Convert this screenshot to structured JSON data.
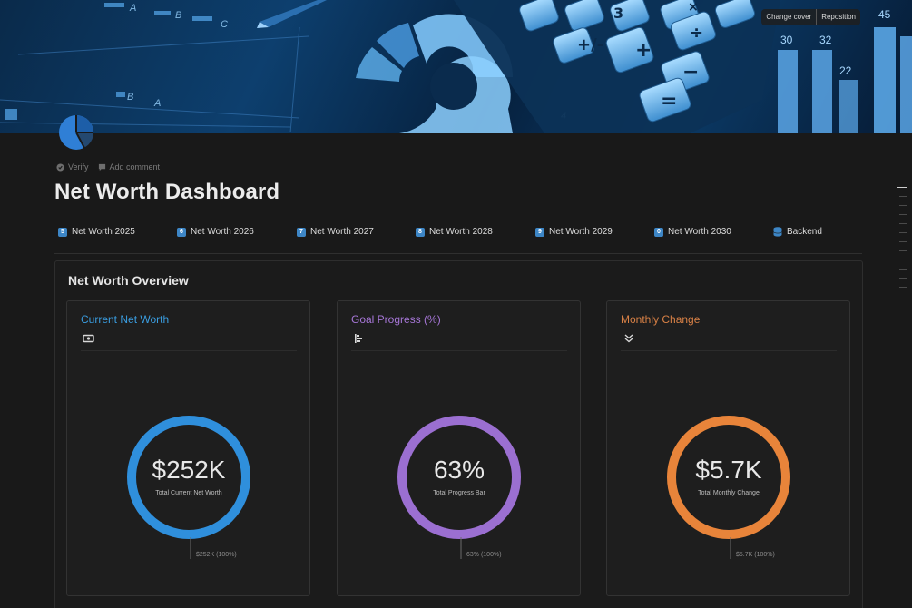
{
  "cover": {
    "change_cover_label": "Change cover",
    "reposition_label": "Reposition"
  },
  "page": {
    "icon": "pie-chart-icon",
    "title": "Net Worth Dashboard",
    "verify_label": "Verify",
    "add_comment_label": "Add comment"
  },
  "links": [
    {
      "badge": "5",
      "label": "Net Worth 2025"
    },
    {
      "badge": "6",
      "label": "Net Worth 2026"
    },
    {
      "badge": "7",
      "label": "Net Worth 2027"
    },
    {
      "badge": "8",
      "label": "Net Worth 2028"
    },
    {
      "badge": "9",
      "label": "Net Worth 2029"
    },
    {
      "badge": "0",
      "label": "Net Worth 2030"
    },
    {
      "badge": "",
      "label": "Backend",
      "icon": "database-icon"
    }
  ],
  "overview": {
    "title": "Net Worth Overview",
    "cards": [
      {
        "title": "Current Net Worth",
        "icon": "banknote-icon",
        "value": "$252K",
        "subtitle": "Total Current Net Worth",
        "leader_label": "$252K (100%)",
        "fraction": 1.0,
        "color": "#2f8fdc",
        "title_color": "#3a9de0"
      },
      {
        "title": "Goal Progress (%)",
        "icon": "bar-chart-icon",
        "value": "63%",
        "subtitle": "Total Progress Bar",
        "leader_label": "63% (100%)",
        "fraction": 1.0,
        "color": "#9b6fd1",
        "title_color": "#a777d8"
      },
      {
        "title": "Monthly Change",
        "icon": "double-chevron-down-icon",
        "value": "$5.7K",
        "subtitle": "Total Monthly Change",
        "leader_label": "$5.7K (100%)",
        "fraction": 1.0,
        "color": "#e8843a",
        "title_color": "#d98146"
      }
    ]
  }
}
